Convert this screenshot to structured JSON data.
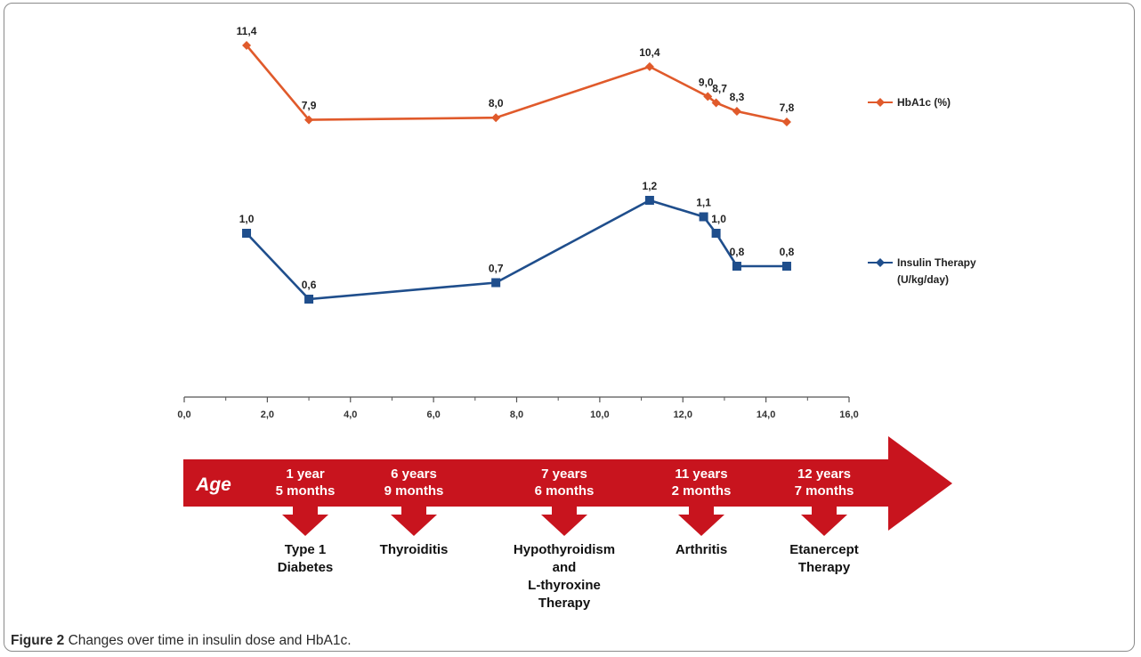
{
  "chart_data": {
    "type": "line",
    "x_axis": {
      "ticks": [
        "0,0",
        "2,0",
        "4,0",
        "6,0",
        "8,0",
        "10,0",
        "12,0",
        "14,0",
        "16,0"
      ],
      "xlim": [
        0,
        16
      ]
    },
    "series": [
      {
        "name": "HbA1c (%)",
        "color": "#e05a2b",
        "marker": "diamond",
        "x": [
          1.5,
          3.0,
          7.5,
          11.2,
          12.6,
          12.8,
          13.3,
          14.5
        ],
        "values": [
          11.4,
          7.9,
          8.0,
          10.4,
          9.0,
          8.7,
          8.3,
          7.8
        ],
        "labels": [
          "11,4",
          "7,9",
          "8,0",
          "10,4",
          "9,0",
          "8,7",
          "8,3",
          "7,8"
        ]
      },
      {
        "name": "Insulin Therapy (U/kg/day)",
        "legend_lines": [
          "Insulin Therapy",
          "(U/kg/day)"
        ],
        "color": "#1f4e8c",
        "marker": "square",
        "x": [
          1.5,
          3.0,
          7.5,
          11.2,
          12.5,
          12.8,
          13.3,
          14.5
        ],
        "values": [
          1.0,
          0.6,
          0.7,
          1.2,
          1.1,
          1.0,
          0.8,
          0.8
        ],
        "labels": [
          "1,0",
          "0,6",
          "0,7",
          "1,2",
          "1,1",
          "1,0",
          "0,8",
          "0,8"
        ]
      }
    ],
    "legend_placement": "right",
    "grid": false
  },
  "timeline": {
    "label": "Age",
    "color": "#c8141e",
    "ages": [
      {
        "line1": "1 year",
        "line2": "5 months"
      },
      {
        "line1": "6 years",
        "line2": "9 months"
      },
      {
        "line1": "7 years",
        "line2": "6 months"
      },
      {
        "line1": "11 years",
        "line2": "2 months"
      },
      {
        "line1": "12 years",
        "line2": "7 months"
      }
    ],
    "events": [
      [
        "Type 1",
        "Diabetes"
      ],
      [
        "Thyroiditis"
      ],
      [
        "Hypothyroidism",
        "and",
        "L-thyroxine",
        "Therapy"
      ],
      [
        "Arthritis"
      ],
      [
        "Etanercept",
        "Therapy"
      ]
    ]
  },
  "caption": {
    "label": "Figure 2",
    "text": " Changes over time in insulin dose and HbA1c."
  }
}
